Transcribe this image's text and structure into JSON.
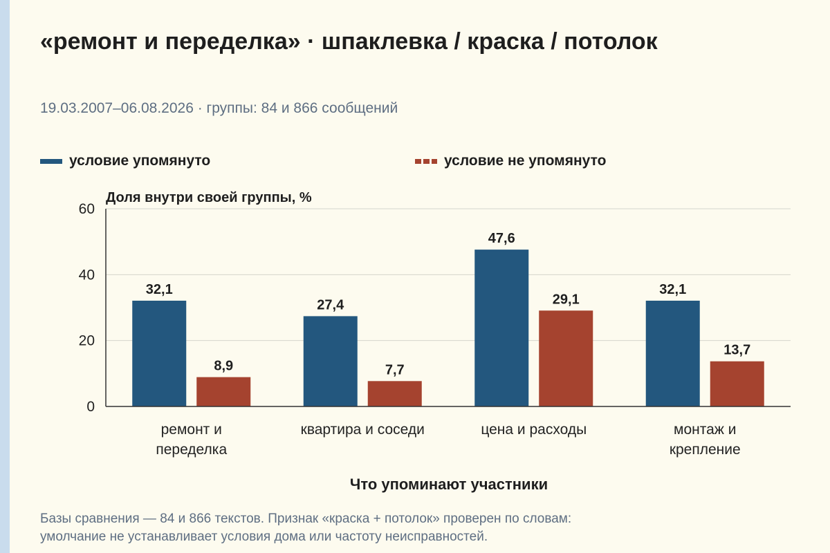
{
  "header": {
    "title": "«ремонт и переделка» · шпаклевка / краска / потолок",
    "subtitle": "19.03.2007–06.08.2026 · группы: 84 и 866 сообщений"
  },
  "footnote": {
    "line1": "Базы сравнения — 84 и 866 текстов. Признак «краска + потолок» проверен по словам:",
    "line2": "умолчание не устанавливает условия дома или частоту неисправностей."
  },
  "chart_data": {
    "type": "bar",
    "ylabel": "Доля внутри своей группы, %",
    "xlabel": "Что упоминают участники",
    "ylim": [
      0,
      60
    ],
    "yticks": [
      0,
      20,
      40,
      60
    ],
    "grid": true,
    "legend_position": "top",
    "categories": [
      [
        "ремонт и",
        "переделка"
      ],
      [
        "квартира и соседи"
      ],
      [
        "цена и расходы"
      ],
      [
        "монтаж и",
        "крепление"
      ]
    ],
    "series": [
      {
        "name": "условие упомянуто",
        "color": "#23577e",
        "values": [
          32.1,
          27.4,
          47.6,
          32.1
        ],
        "labels": [
          "32,1",
          "27,4",
          "47,6",
          "32,1"
        ]
      },
      {
        "name": "условие не упомянуто",
        "color": "#a5432f",
        "values": [
          8.9,
          7.7,
          29.1,
          13.7
        ],
        "labels": [
          "8,9",
          "7,7",
          "29,1",
          "13,7"
        ]
      }
    ]
  }
}
